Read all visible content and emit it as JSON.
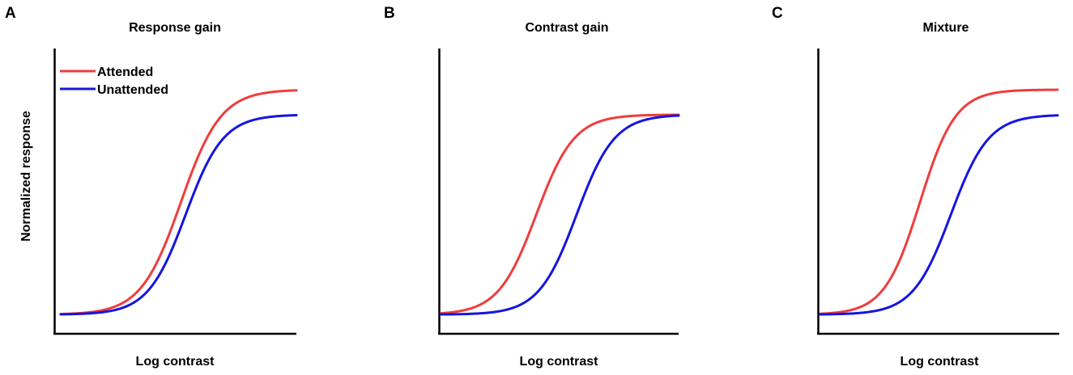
{
  "chart_data": [
    {
      "type": "line",
      "panel_label": "A",
      "title": "Response gain",
      "xlabel": "Log contrast",
      "ylabel": "Normalized response",
      "legend": {
        "placement": "top-left",
        "entries": [
          {
            "name": "Attended",
            "color": "#f03c3c"
          },
          {
            "name": "Unattended",
            "color": "#1515e0"
          }
        ]
      },
      "series": [
        {
          "name": "Attended",
          "color": "#f03c3c",
          "sigmoid": {
            "base": 0.0,
            "amplitude": 0.9,
            "midpoint": 0.51,
            "slope": 0.085
          }
        },
        {
          "name": "Unattended",
          "color": "#1515e0",
          "sigmoid": {
            "base": 0.0,
            "amplitude": 0.8,
            "midpoint": 0.53,
            "slope": 0.08
          }
        }
      ],
      "xlim": [
        0,
        1
      ],
      "ylim": [
        -0.08,
        1.0
      ]
    },
    {
      "type": "line",
      "panel_label": "B",
      "title": "Contrast gain",
      "xlabel": "Log contrast",
      "series": [
        {
          "name": "Attended",
          "color": "#f03c3c",
          "sigmoid": {
            "base": 0.0,
            "amplitude": 0.8,
            "midpoint": 0.4,
            "slope": 0.08
          }
        },
        {
          "name": "Unattended",
          "color": "#1515e0",
          "sigmoid": {
            "base": 0.0,
            "amplitude": 0.8,
            "midpoint": 0.57,
            "slope": 0.08
          }
        }
      ],
      "xlim": [
        0,
        1
      ],
      "ylim": [
        -0.08,
        1.0
      ]
    },
    {
      "type": "line",
      "panel_label": "C",
      "title": "Mixture",
      "xlabel": "Log contrast",
      "series": [
        {
          "name": "Attended",
          "color": "#f03c3c",
          "sigmoid": {
            "base": 0.0,
            "amplitude": 0.9,
            "midpoint": 0.42,
            "slope": 0.075
          }
        },
        {
          "name": "Unattended",
          "color": "#1515e0",
          "sigmoid": {
            "base": 0.0,
            "amplitude": 0.8,
            "midpoint": 0.55,
            "slope": 0.08
          }
        }
      ],
      "xlim": [
        0,
        1
      ],
      "ylim": [
        -0.08,
        1.0
      ]
    }
  ]
}
